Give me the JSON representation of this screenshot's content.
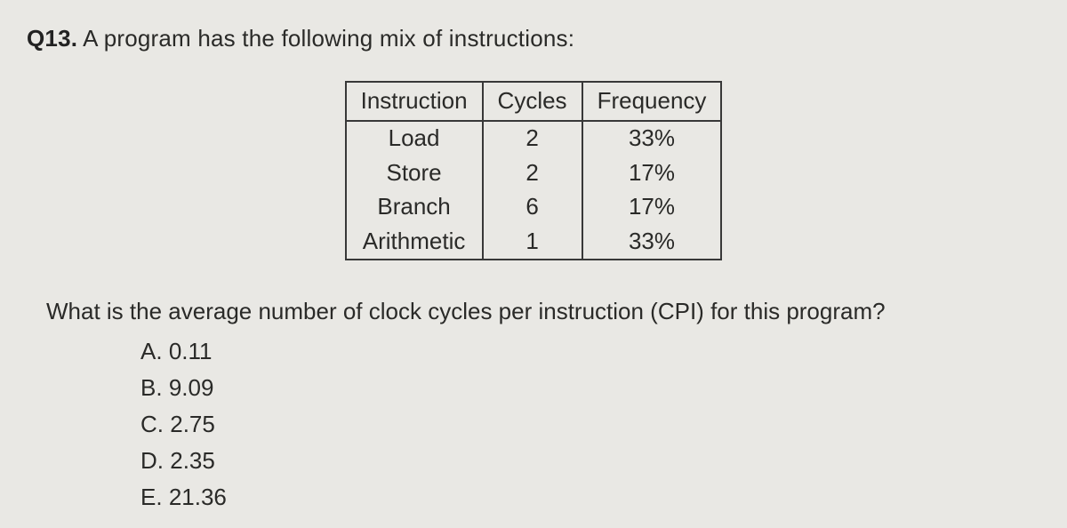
{
  "question_number": "Q13.",
  "question_intro": "A program has the following mix of instructions:",
  "table": {
    "columns": [
      "Instruction",
      "Cycles",
      "Frequency"
    ],
    "rows": [
      [
        "Load",
        "2",
        "33%"
      ],
      [
        "Store",
        "2",
        "17%"
      ],
      [
        "Branch",
        "6",
        "17%"
      ],
      [
        "Arithmetic",
        "1",
        "33%"
      ]
    ],
    "border_color": "#383838",
    "font_size": 26
  },
  "prompt": "What is the average number of clock cycles per instruction (CPI) for this program?",
  "options": [
    {
      "letter": "A.",
      "text": "0.11"
    },
    {
      "letter": "B.",
      "text": "9.09"
    },
    {
      "letter": "C.",
      "text": "2.75"
    },
    {
      "letter": "D.",
      "text": "2.35"
    },
    {
      "letter": "E.",
      "text": "21.36"
    }
  ],
  "style": {
    "background_color": "#e9e8e4",
    "text_color": "#2a2a28",
    "font_family": "Segoe UI, Helvetica Neue, Arial, sans-serif"
  }
}
